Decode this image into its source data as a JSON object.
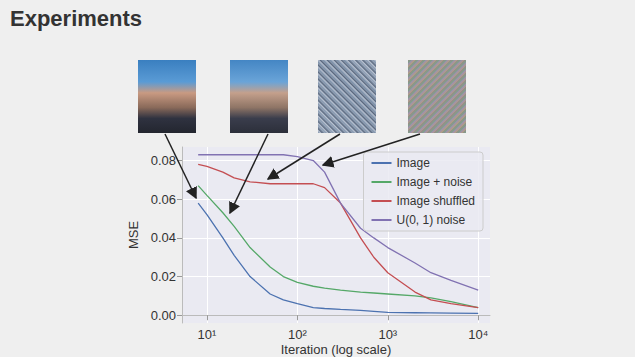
{
  "chart_data": {
    "type": "line",
    "title": "Experiments",
    "x_label": "Iteration (log scale)",
    "y_label": "MSE",
    "x": [
      8,
      10,
      15,
      20,
      30,
      50,
      70,
      100,
      150,
      200,
      300,
      500,
      700,
      1000,
      2000,
      3000,
      5000,
      10000
    ],
    "series": [
      {
        "name": "Image",
        "color": "#4c72b0",
        "values": [
          0.058,
          0.052,
          0.04,
          0.031,
          0.02,
          0.011,
          0.008,
          0.006,
          0.004,
          0.0035,
          0.003,
          0.0025,
          0.002,
          0.0015,
          0.0013,
          0.0012,
          0.0011,
          0.001
        ]
      },
      {
        "name": "Image + noise",
        "color": "#55a868",
        "values": [
          0.067,
          0.062,
          0.053,
          0.046,
          0.035,
          0.025,
          0.02,
          0.017,
          0.015,
          0.014,
          0.013,
          0.012,
          0.0115,
          0.011,
          0.01,
          0.009,
          0.007,
          0.004
        ]
      },
      {
        "name": "Image shuffled",
        "color": "#c44e52",
        "values": [
          0.078,
          0.077,
          0.074,
          0.071,
          0.069,
          0.068,
          0.068,
          0.068,
          0.068,
          0.066,
          0.058,
          0.04,
          0.03,
          0.022,
          0.012,
          0.008,
          0.006,
          0.004
        ]
      },
      {
        "name": "U(0, 1) noise",
        "color": "#8172b2",
        "values": [
          0.083,
          0.083,
          0.083,
          0.083,
          0.083,
          0.083,
          0.083,
          0.082,
          0.08,
          0.074,
          0.058,
          0.045,
          0.04,
          0.035,
          0.027,
          0.022,
          0.018,
          0.013
        ]
      }
    ],
    "log": "x",
    "xlim": [
      5.3,
      13500
    ],
    "xticks": [
      {
        "value": 10,
        "label": "10¹"
      },
      {
        "value": 100,
        "label": "10²"
      },
      {
        "value": 1000,
        "label": "10³"
      },
      {
        "value": 10000,
        "label": "10⁴"
      }
    ],
    "ylim": [
      -0.004,
      0.087
    ],
    "yticks": [
      {
        "value": 0,
        "label": "0.00"
      },
      0.02,
      0.04,
      0.06,
      0.08
    ],
    "grid": true,
    "legend": "upper right"
  }
}
